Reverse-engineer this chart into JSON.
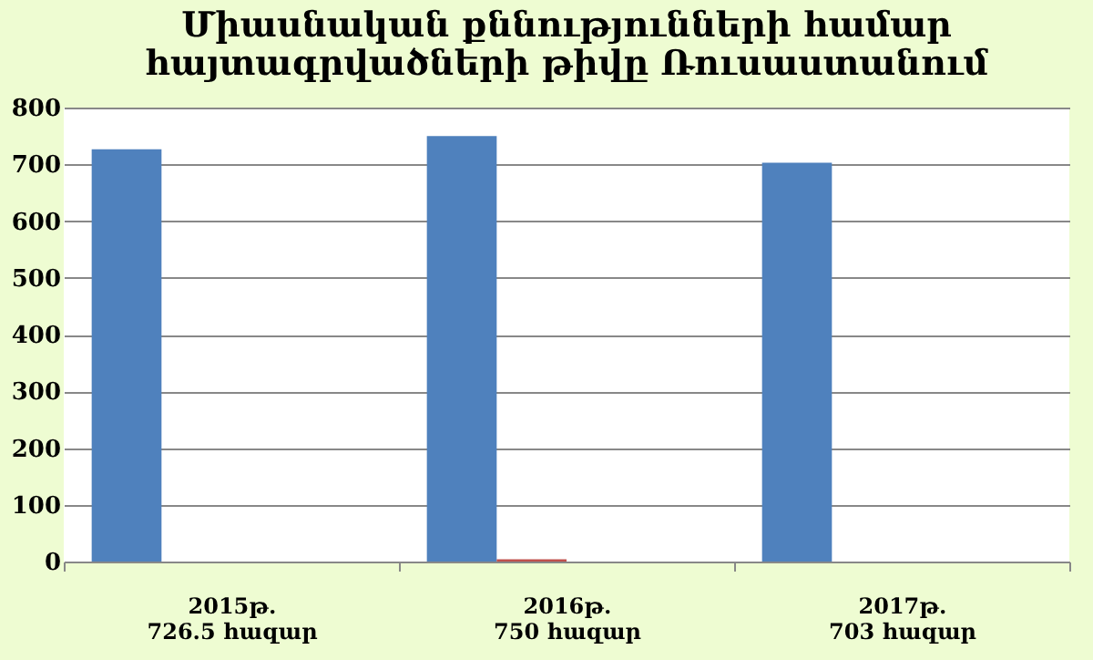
{
  "chart_data": {
    "type": "bar",
    "title": [
      "Միասնական քննությունների համար",
      "հայտագրվածների թիվը Ռուսաստանում"
    ],
    "categories": [
      "2015թ.\n726.5 հազար",
      "2016թ.\n750 հազար",
      "2017թ.\n703 հազար"
    ],
    "series": [
      {
        "color": "#4f81bd",
        "values": [
          726.5,
          750,
          703
        ]
      },
      {
        "color": "#c0504d",
        "values": [
          null,
          4,
          null
        ]
      }
    ],
    "ylim": [
      0,
      800
    ],
    "yticks": [
      0,
      100,
      200,
      300,
      400,
      500,
      600,
      700,
      800
    ],
    "grid": "y",
    "legend": false
  }
}
